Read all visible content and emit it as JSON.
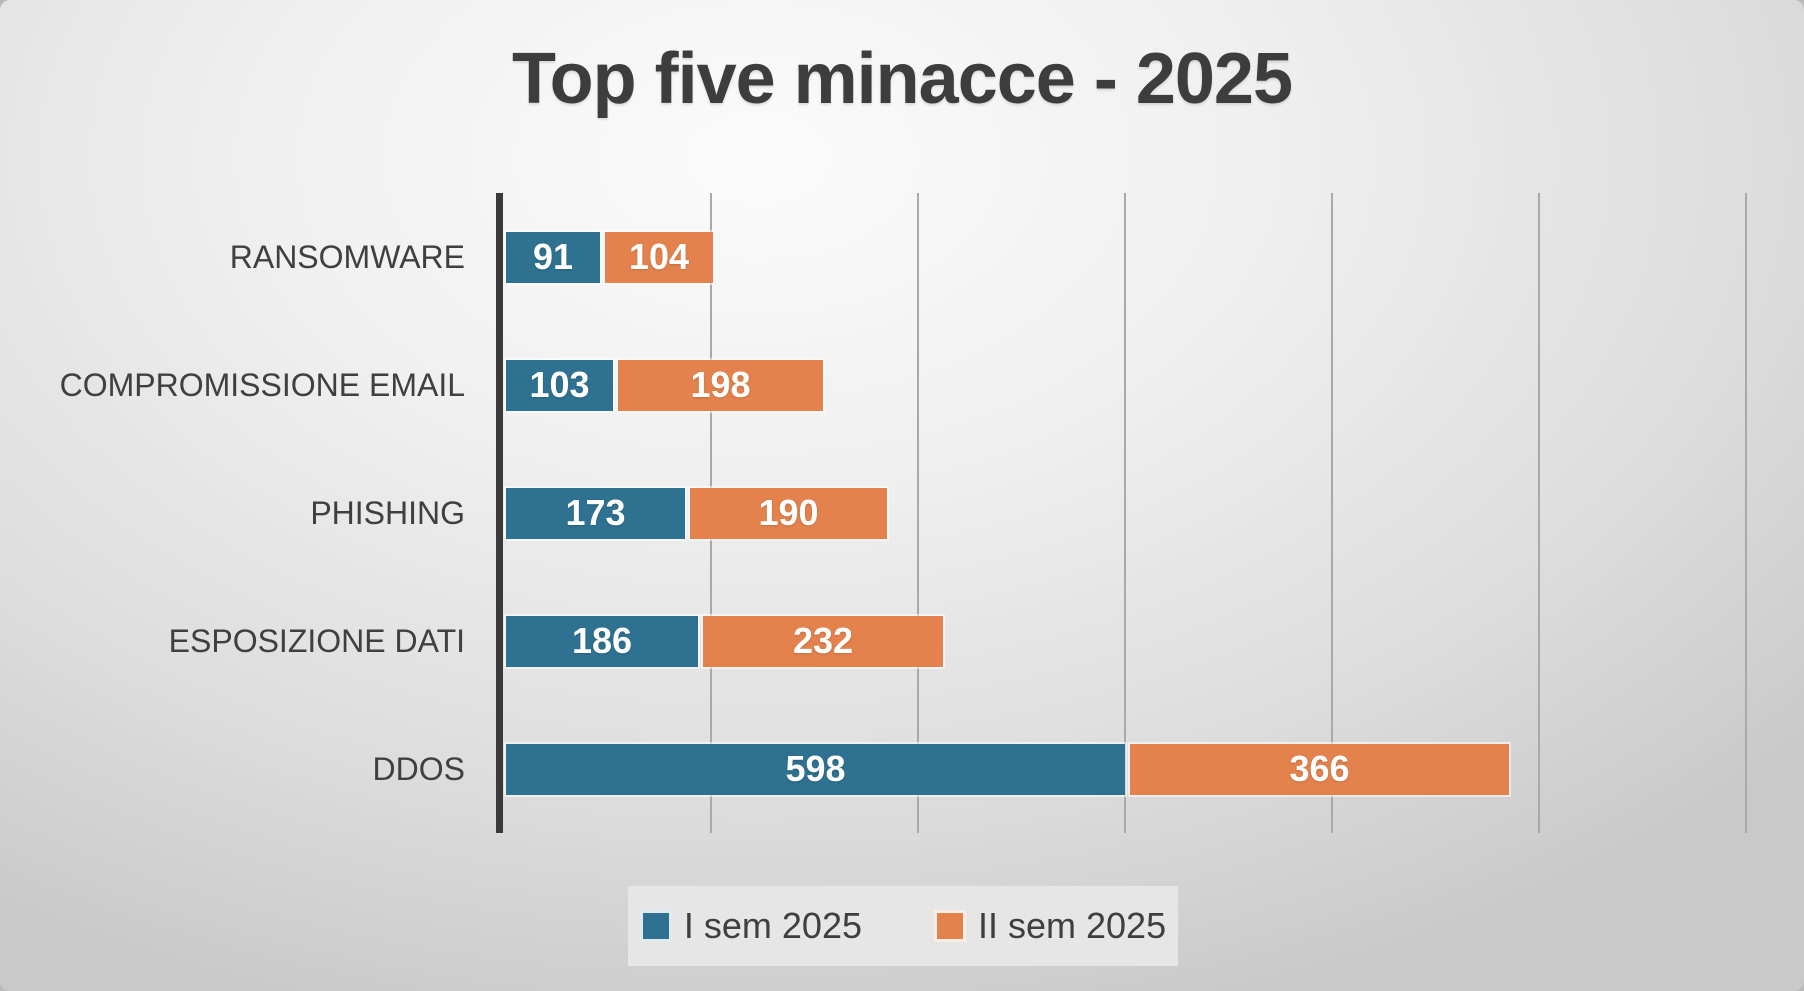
{
  "chart_data": {
    "type": "bar",
    "orientation": "horizontal-stacked",
    "title": "Top five minacce - 2025",
    "categories": [
      "RANSOMWARE",
      "COMPROMISSIONE EMAIL",
      "PHISHING",
      "ESPOSIZIONE DATI",
      "DDOS"
    ],
    "series": [
      {
        "name": "I sem 2025",
        "color": "#2f7191",
        "values": [
          91,
          103,
          173,
          186,
          598
        ]
      },
      {
        "name": "II sem 2025",
        "color": "#e3824c",
        "values": [
          104,
          198,
          190,
          232,
          366
        ]
      }
    ],
    "totals": [
      195,
      301,
      363,
      418,
      964
    ],
    "xlim": [
      0,
      1205
    ],
    "gridline_interval": 200,
    "grid": true,
    "value_labels": "inside-center",
    "legend_position": "bottom"
  },
  "colors": {
    "title_text": "#3d3d3d",
    "category_text": "#3f3f3f",
    "axis_line": "#3a3a3a",
    "gridline": "#a9a9a9",
    "value_label_text": "#ffffff",
    "legend_background": "#e6e6e6",
    "background_light": "#fbfbfb",
    "background_dark": "#c9c9c9"
  }
}
